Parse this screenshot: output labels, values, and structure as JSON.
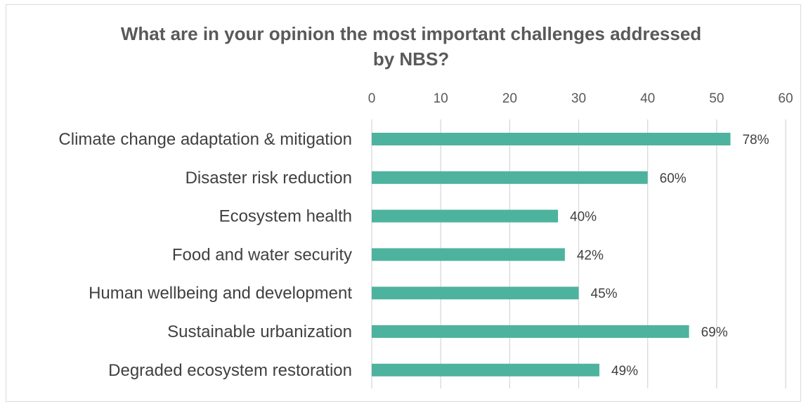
{
  "chart_data": {
    "type": "bar",
    "orientation": "horizontal",
    "title": "What are in your opinion the most important challenges addressed\nby NBS?",
    "xlabel": "",
    "ylabel": "",
    "xlim": [
      0,
      60
    ],
    "xticks": [
      0,
      10,
      20,
      30,
      40,
      50,
      60
    ],
    "axis_position": "top",
    "grid": true,
    "legend": "none",
    "bar_color": "#4db39e",
    "categories": [
      "Climate change adaptation & mitigation",
      "Disaster risk reduction",
      "Ecosystem health",
      "Food and water security",
      "Human wellbeing and development",
      "Sustainable urbanization",
      "Degraded ecosystem restoration"
    ],
    "values": [
      52,
      40,
      27,
      28,
      30,
      46,
      33
    ],
    "data_labels": [
      "78%",
      "60%",
      "40%",
      "42%",
      "45%",
      "69%",
      "49%"
    ]
  }
}
